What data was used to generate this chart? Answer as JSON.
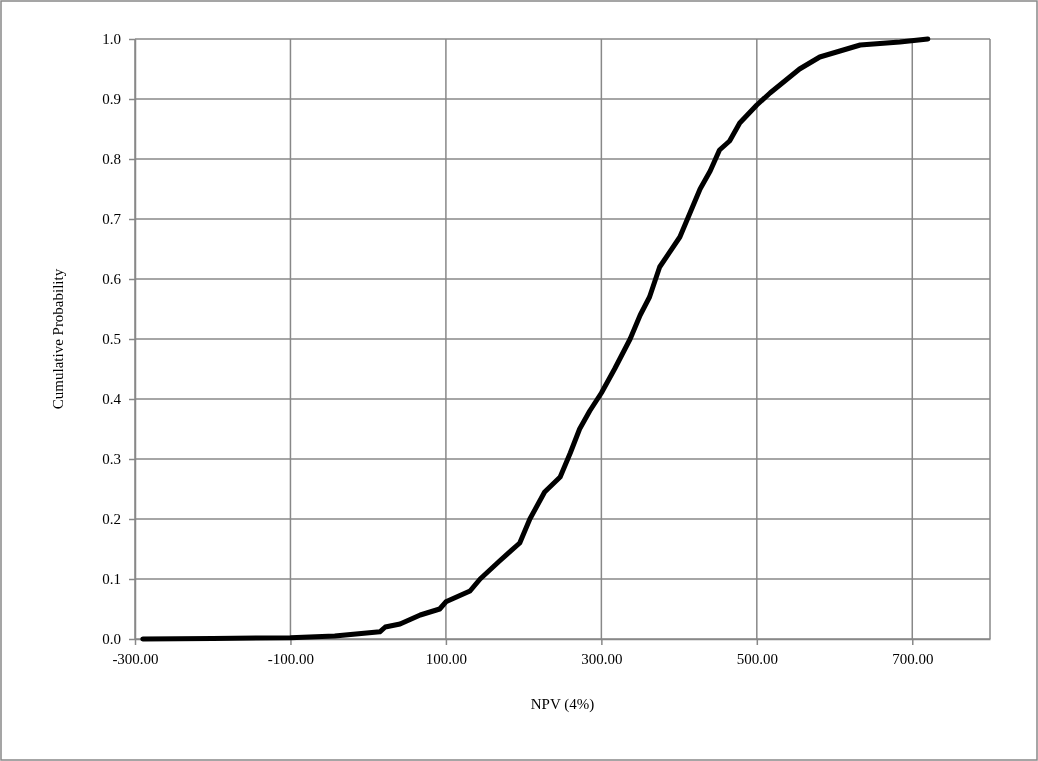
{
  "chart_data": {
    "type": "line",
    "xlabel": "NPV (4%)",
    "ylabel": "Cumulative Probability",
    "xlim": [
      -300,
      800
    ],
    "xticks": [
      {
        "value": -300,
        "label": "-300.00"
      },
      {
        "value": -100,
        "label": "-100.00"
      },
      {
        "value": 100,
        "label": "100.00"
      },
      {
        "value": 300,
        "label": "300.00"
      },
      {
        "value": 500,
        "label": "500.00"
      },
      {
        "value": 700,
        "label": "700.00"
      }
    ],
    "ylim": [
      0,
      1
    ],
    "yticks": [
      {
        "value": 0,
        "label": "0.0"
      },
      {
        "value": 0.1,
        "label": "0.1"
      },
      {
        "value": 0.2,
        "label": "0.2"
      },
      {
        "value": 0.3,
        "label": "0.3"
      },
      {
        "value": 0.4,
        "label": "0.4"
      },
      {
        "value": 0.5,
        "label": "0.5"
      },
      {
        "value": 0.6,
        "label": "0.6"
      },
      {
        "value": 0.7,
        "label": "0.7"
      },
      {
        "value": 0.8,
        "label": "0.8"
      },
      {
        "value": 0.9,
        "label": "0.9"
      },
      {
        "value": 1.0,
        "label": "1.0"
      }
    ],
    "grid": true,
    "marker": "none",
    "line_style": "solid",
    "series": [
      {
        "color": "#000000",
        "x": [
          -290,
          -200,
          -100,
          -43,
          15,
          22,
          41,
          67,
          92,
          100,
          131,
          144,
          169,
          195,
          208,
          227,
          247,
          260,
          272,
          285,
          300,
          317,
          337,
          350,
          362,
          375,
          401,
          414,
          427,
          440,
          452,
          465,
          478,
          500,
          517,
          536,
          555,
          581,
          607,
          633,
          684,
          720
        ],
        "values": [
          0,
          0.001,
          0.002,
          0.005,
          0.012,
          0.02,
          0.025,
          0.04,
          0.05,
          0.062,
          0.08,
          0.1,
          0.13,
          0.16,
          0.2,
          0.245,
          0.27,
          0.31,
          0.35,
          0.38,
          0.41,
          0.45,
          0.5,
          0.54,
          0.57,
          0.62,
          0.67,
          0.71,
          0.75,
          0.78,
          0.815,
          0.83,
          0.86,
          0.89,
          0.91,
          0.93,
          0.95,
          0.97,
          0.98,
          0.99,
          0.995,
          1.0
        ]
      }
    ]
  }
}
